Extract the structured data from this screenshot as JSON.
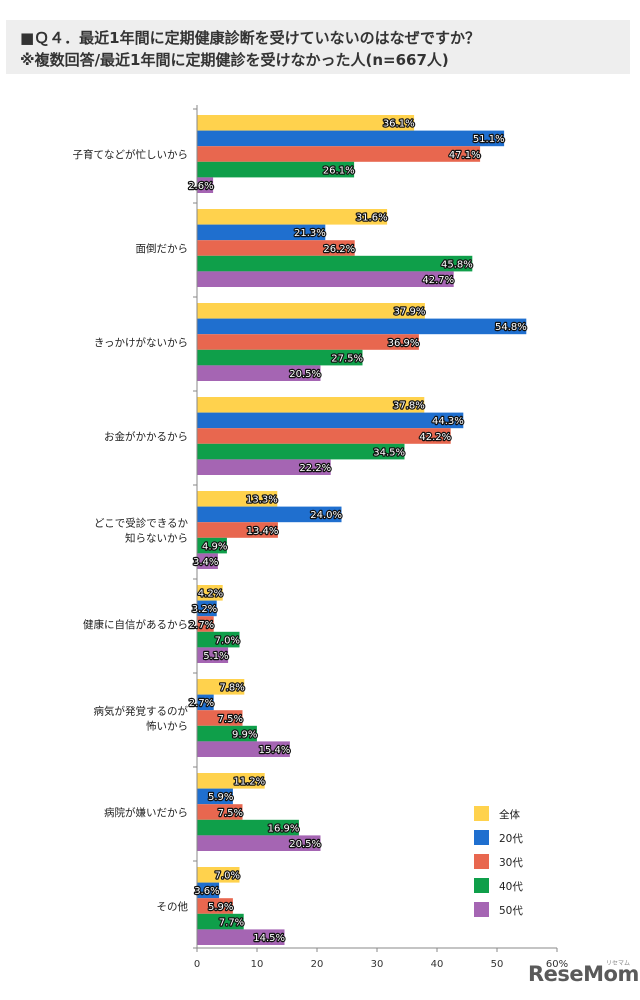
{
  "header": {
    "line1": "■Ｑ４．最近1年間に定期健康診断を受けていないのはなぜですか？",
    "line2": "※複数回答/最近1年間に定期健診を受けなかった人(n=667人)"
  },
  "logo": {
    "text": "ReseMom",
    "sub": "リセマム"
  },
  "chart_data": {
    "type": "bar",
    "orientation": "horizontal",
    "categories": [
      "子育てなどが忙しいから",
      "面倒だから",
      "きっかけがないから",
      "お金がかかるから",
      "どこで受診できるか\n知らないから",
      "健康に自信があるから",
      "病気が発覚するのが\n怖いから",
      "病院が嫌いだから",
      "その他"
    ],
    "series": [
      {
        "name": "全体",
        "color": "#ffd24d",
        "values": [
          36.1,
          31.6,
          37.9,
          37.8,
          13.3,
          4.2,
          7.8,
          11.2,
          7.0
        ]
      },
      {
        "name": "20代",
        "color": "#1f6fcf",
        "values": [
          51.1,
          21.3,
          54.8,
          44.3,
          24.0,
          3.2,
          2.7,
          5.9,
          3.6
        ]
      },
      {
        "name": "30代",
        "color": "#e8674f",
        "values": [
          47.1,
          26.2,
          36.9,
          42.2,
          13.4,
          2.7,
          7.5,
          7.5,
          5.9
        ]
      },
      {
        "name": "40代",
        "color": "#0f9f4a",
        "values": [
          26.1,
          45.8,
          27.5,
          34.5,
          4.9,
          7.0,
          9.9,
          16.9,
          7.7
        ]
      },
      {
        "name": "50代",
        "color": "#a565b3",
        "values": [
          2.6,
          42.7,
          20.5,
          22.2,
          3.4,
          5.1,
          15.4,
          20.5,
          14.5
        ]
      }
    ],
    "value_labels": [
      [
        "36.1%",
        "31.6%",
        "37.9%",
        "37.8%",
        "13.3%",
        "4.2%",
        "7.8%",
        "11.2%",
        "7.0%"
      ],
      [
        "51.1%",
        "21.3%",
        "54.8%",
        "44.3%",
        "24.0%",
        "3.2%",
        "2.7%",
        "5.9%",
        "3.6%"
      ],
      [
        "47.1%",
        "26.2%",
        "36.9%",
        "42.2%",
        "13.4%",
        "2.7%",
        "7.5%",
        "7.5%",
        "5.9%"
      ],
      [
        "26.1%",
        "45.8%",
        "27.5%",
        "34.5%",
        "4.9%",
        "7.0%",
        "9.9%",
        "16.9%",
        "7.7%"
      ],
      [
        "2.6%",
        "42.7%",
        "20.5%",
        "22.2%",
        "3.4%",
        "5.1%",
        "15.4%",
        "20.5%",
        "14.5%"
      ]
    ],
    "xlim": [
      0,
      60
    ],
    "xticks": [
      "0",
      "10",
      "20",
      "30",
      "40",
      "50",
      "60%"
    ],
    "xtick_values": [
      0,
      10,
      20,
      30,
      40,
      50,
      60
    ],
    "grid": false,
    "legend_position": "bottom-right"
  }
}
